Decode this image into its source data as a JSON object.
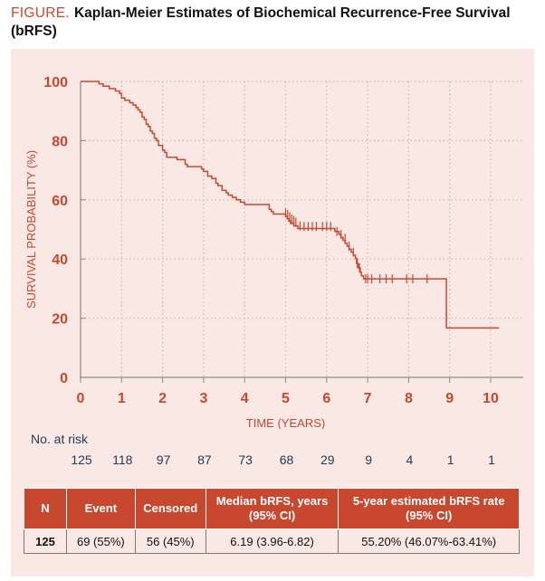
{
  "figure": {
    "lead": "FIGURE.",
    "title": "Kaplan-Meier Estimates of Biochemical Recurrence-Free Survival (bRFS)"
  },
  "colors": {
    "accent": "#c8482f",
    "panel": "#f9e8e3",
    "grid": "#c9b9b4",
    "axis": "#8a8a8a",
    "risk_text": "#1f3a56"
  },
  "chart_data": {
    "type": "line",
    "subtype": "kaplan-meier step",
    "title": "Kaplan-Meier Estimates of Biochemical Recurrence-Free Survival (bRFS)",
    "xlabel": "TIME (YEARS)",
    "ylabel": "SURVIVAL PROBABILITY (%)",
    "xlim": [
      0,
      10.5
    ],
    "ylim": [
      0,
      100
    ],
    "x_ticks": [
      0,
      1,
      2,
      3,
      4,
      5,
      6,
      7,
      8,
      9,
      10
    ],
    "y_ticks": [
      0,
      20,
      40,
      60,
      80,
      100
    ],
    "grid": "dotted",
    "series": [
      {
        "name": "bRFS",
        "steps": [
          [
            0,
            100
          ],
          [
            0.45,
            99.2
          ],
          [
            0.55,
            98.4
          ],
          [
            0.7,
            97.6
          ],
          [
            0.85,
            96.8
          ],
          [
            0.95,
            96.0
          ],
          [
            1.0,
            94.4
          ],
          [
            1.08,
            93.6
          ],
          [
            1.2,
            92.8
          ],
          [
            1.28,
            92.0
          ],
          [
            1.35,
            91.2
          ],
          [
            1.4,
            90.4
          ],
          [
            1.45,
            89.6
          ],
          [
            1.5,
            88.0
          ],
          [
            1.55,
            87.2
          ],
          [
            1.6,
            85.6
          ],
          [
            1.65,
            84.8
          ],
          [
            1.7,
            83.2
          ],
          [
            1.75,
            82.4
          ],
          [
            1.8,
            80.8
          ],
          [
            1.85,
            80.0
          ],
          [
            1.9,
            78.4
          ],
          [
            2.0,
            76.8
          ],
          [
            2.05,
            76.0
          ],
          [
            2.1,
            74.4
          ],
          [
            2.35,
            73.6
          ],
          [
            2.55,
            72.0
          ],
          [
            2.6,
            71.2
          ],
          [
            2.95,
            70.4
          ],
          [
            3.0,
            69.6
          ],
          [
            3.1,
            68.0
          ],
          [
            3.2,
            67.2
          ],
          [
            3.3,
            65.6
          ],
          [
            3.35,
            64.8
          ],
          [
            3.45,
            63.2
          ],
          [
            3.55,
            62.4
          ],
          [
            3.6,
            61.6
          ],
          [
            3.7,
            60.8
          ],
          [
            3.8,
            60.0
          ],
          [
            3.9,
            59.2
          ],
          [
            4.0,
            58.4
          ],
          [
            4.6,
            56.8
          ],
          [
            4.65,
            56.0
          ],
          [
            4.7,
            55.2
          ],
          [
            5.0,
            54.4
          ],
          [
            5.04,
            53.6
          ],
          [
            5.08,
            52.8
          ],
          [
            5.12,
            52.0
          ],
          [
            5.2,
            51.2
          ],
          [
            5.3,
            50.3
          ],
          [
            6.2,
            49.3
          ],
          [
            6.3,
            48.3
          ],
          [
            6.35,
            47.3
          ],
          [
            6.4,
            46.3
          ],
          [
            6.45,
            45.3
          ],
          [
            6.5,
            44.3
          ],
          [
            6.55,
            43.3
          ],
          [
            6.6,
            42.3
          ],
          [
            6.65,
            41.3
          ],
          [
            6.7,
            40.3
          ],
          [
            6.73,
            38.5
          ],
          [
            6.77,
            37.0
          ],
          [
            6.82,
            35.5
          ],
          [
            6.85,
            34.3
          ],
          [
            6.9,
            33.3
          ],
          [
            8.92,
            16.7
          ],
          [
            10.2,
            16.7
          ]
        ],
        "censored": [
          [
            5.0,
            55.6
          ],
          [
            5.05,
            55.0
          ],
          [
            5.1,
            54.2
          ],
          [
            5.15,
            53.5
          ],
          [
            5.2,
            53.0
          ],
          [
            5.25,
            52.4
          ],
          [
            5.35,
            51.2
          ],
          [
            5.45,
            51.0
          ],
          [
            5.55,
            51.0
          ],
          [
            5.65,
            51.0
          ],
          [
            5.75,
            51.0
          ],
          [
            5.9,
            51.0
          ],
          [
            6.0,
            51.0
          ],
          [
            6.1,
            51.0
          ],
          [
            6.25,
            49.3
          ],
          [
            6.35,
            48.3
          ],
          [
            6.45,
            47.0
          ],
          [
            6.55,
            44.3
          ],
          [
            6.65,
            42.3
          ],
          [
            6.75,
            38.5
          ],
          [
            6.8,
            37.0
          ],
          [
            6.95,
            33.3
          ],
          [
            7.0,
            33.3
          ],
          [
            7.1,
            33.3
          ],
          [
            7.3,
            33.3
          ],
          [
            7.45,
            33.3
          ],
          [
            7.6,
            33.3
          ],
          [
            7.95,
            33.3
          ],
          [
            8.1,
            33.3
          ],
          [
            8.45,
            33.3
          ]
        ]
      }
    ]
  },
  "risk": {
    "label": "No. at risk",
    "values": [
      "125",
      "118",
      "97",
      "87",
      "73",
      "68",
      "29",
      "9",
      "4",
      "1",
      "1"
    ]
  },
  "table": {
    "headers": [
      "N",
      "Event",
      "Censored",
      "Median bRFS, years (95% CI)",
      "5-year estimated bRFS rate (95% CI)"
    ],
    "row": [
      "125",
      "69 (55%)",
      "56 (45%)",
      "6.19 (3.96-6.82)",
      "55.20% (46.07%-63.41%)"
    ]
  }
}
